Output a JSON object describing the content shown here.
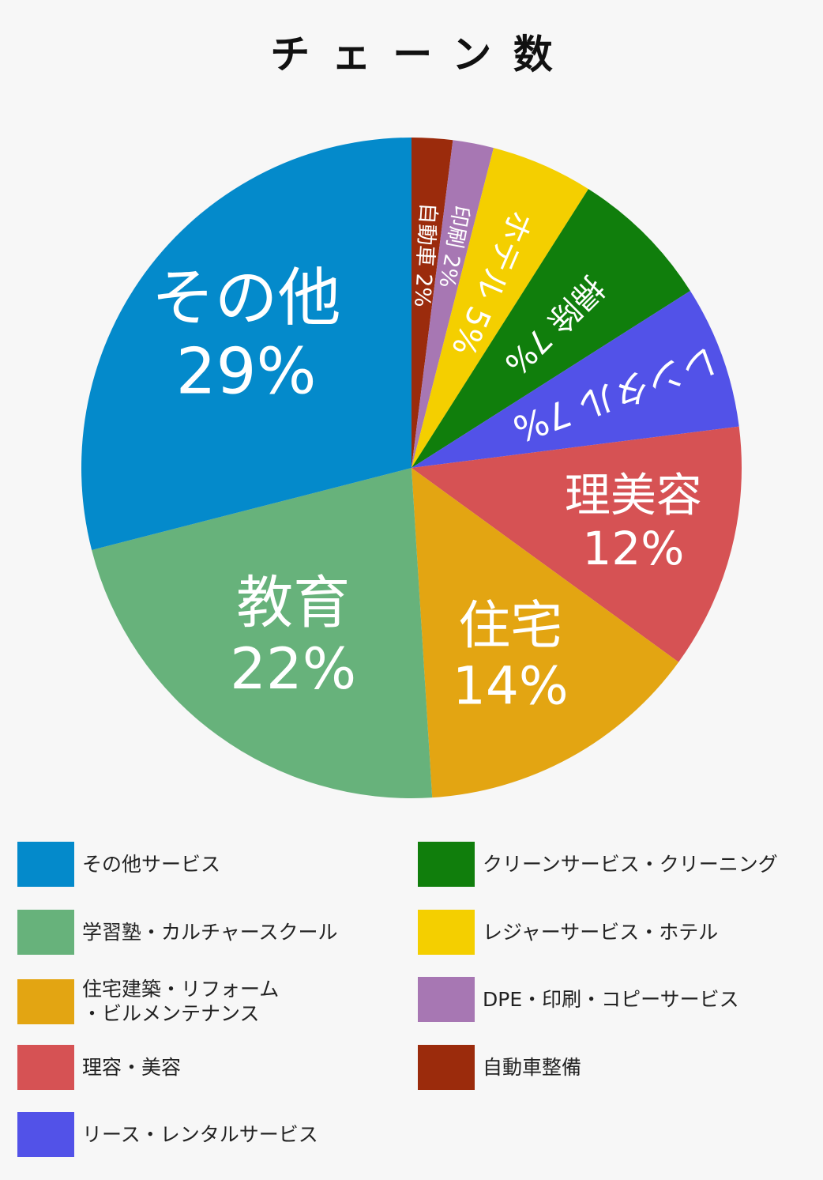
{
  "chart_data": {
    "type": "pie",
    "title": "チェーン数",
    "slices": [
      {
        "label": "自動車",
        "value": 2,
        "pct_label": "2%",
        "color": "#9b2b0c",
        "legend": "自動車整備"
      },
      {
        "label": "印刷",
        "value": 2,
        "pct_label": "2%",
        "color": "#a777b3",
        "legend": "DPE・印刷・コピーサービス"
      },
      {
        "label": "ホテル",
        "value": 5,
        "pct_label": "5%",
        "color": "#f4cf00",
        "legend": "レジャーサービス・ホテル"
      },
      {
        "label": "掃除",
        "value": 7,
        "pct_label": "7%",
        "color": "#107e0c",
        "legend": "クリーンサービス・クリーニング"
      },
      {
        "label": "レンタル",
        "value": 7,
        "pct_label": "7%",
        "color": "#5252e8",
        "legend": "リース・レンタルサービス"
      },
      {
        "label": "理美容",
        "value": 12,
        "pct_label": "12%",
        "color": "#d65254",
        "legend": "理容・美容"
      },
      {
        "label": "住宅",
        "value": 14,
        "pct_label": "14%",
        "color": "#e3a512",
        "legend": "住宅建築・リフォーム\n・ビルメンテナンス"
      },
      {
        "label": "教育",
        "value": 22,
        "pct_label": "22%",
        "color": "#67b27b",
        "legend": "学習塾・カルチャースクール"
      },
      {
        "label": "その他",
        "value": 29,
        "pct_label": "29%",
        "color": "#048acb",
        "legend": "その他サービス"
      }
    ],
    "legend_placement": "bottom"
  }
}
